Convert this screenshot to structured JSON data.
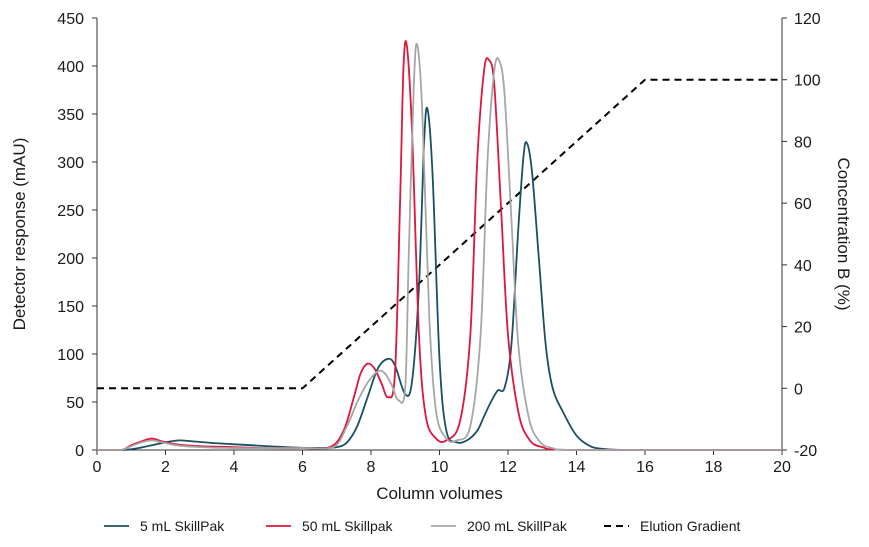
{
  "chart_data": {
    "type": "line",
    "xlabel": "Column volumes",
    "ylabel": "Detector response (mAU)",
    "y2label": "Concentration B (%)",
    "xlim": [
      0,
      20
    ],
    "ylim": [
      0,
      450
    ],
    "y2lim": [
      -20,
      120
    ],
    "xticks": [
      "0",
      "2",
      "4",
      "6",
      "8",
      "10",
      "12",
      "14",
      "16",
      "18",
      "20"
    ],
    "yticks": [
      "0",
      "50",
      "100",
      "150",
      "200",
      "250",
      "300",
      "350",
      "400",
      "450"
    ],
    "y2ticks": [
      "-20",
      "0",
      "20",
      "40",
      "60",
      "80",
      "100",
      "120"
    ],
    "grid": false,
    "legend_position": "bottom",
    "series": [
      {
        "name": "5 mL SkillPak",
        "axis": "left",
        "color": "#1b4f63",
        "x": [
          0,
          0.8,
          1.2,
          1.6,
          2.0,
          2.4,
          2.8,
          3.5,
          4.5,
          5.5,
          6.5,
          7.0,
          7.3,
          7.6,
          7.9,
          8.2,
          8.5,
          8.7,
          9.0,
          9.2,
          9.4,
          9.55,
          9.65,
          9.8,
          10.0,
          10.2,
          10.5,
          10.8,
          11.1,
          11.3,
          11.5,
          11.7,
          11.9,
          12.1,
          12.3,
          12.45,
          12.55,
          12.7,
          12.9,
          13.1,
          13.3,
          13.6,
          14.0,
          14.4,
          14.8,
          15.5,
          17,
          20
        ],
        "y": [
          0,
          0,
          2,
          5,
          8,
          10,
          9,
          7,
          5,
          3,
          2,
          3,
          8,
          25,
          55,
          85,
          95,
          88,
          58,
          72,
          170,
          320,
          355,
          285,
          95,
          20,
          8,
          10,
          20,
          35,
          50,
          62,
          65,
          110,
          230,
          305,
          320,
          290,
          200,
          110,
          65,
          40,
          15,
          4,
          1,
          0,
          0,
          0
        ]
      },
      {
        "name": "50 mL Skillpak",
        "axis": "left",
        "color": "#e0143c",
        "x": [
          0,
          0.7,
          1.0,
          1.3,
          1.6,
          1.9,
          2.3,
          3.0,
          4.0,
          5.0,
          6.0,
          6.8,
          7.2,
          7.5,
          7.7,
          7.9,
          8.1,
          8.3,
          8.5,
          8.7,
          8.85,
          8.95,
          9.05,
          9.2,
          9.4,
          9.6,
          9.9,
          10.2,
          10.6,
          10.9,
          11.1,
          11.3,
          11.45,
          11.6,
          11.8,
          12.0,
          12.3,
          12.6,
          13.0,
          14,
          20
        ],
        "y": [
          0,
          0,
          5,
          9,
          12,
          9,
          6,
          4,
          3,
          2,
          2,
          3,
          20,
          55,
          80,
          90,
          85,
          70,
          55,
          80,
          260,
          400,
          420,
          330,
          120,
          35,
          12,
          10,
          30,
          120,
          300,
          395,
          406,
          380,
          250,
          120,
          40,
          12,
          3,
          0,
          0
        ]
      },
      {
        "name": "200 mL SkillPak",
        "axis": "left",
        "color": "#a6a6a6",
        "x": [
          0,
          0.7,
          1.0,
          1.3,
          1.6,
          1.9,
          2.3,
          3.0,
          4.0,
          5.0,
          6.0,
          6.9,
          7.3,
          7.6,
          7.9,
          8.2,
          8.4,
          8.6,
          8.8,
          9.0,
          9.1,
          9.25,
          9.35,
          9.5,
          9.7,
          9.9,
          10.2,
          10.5,
          10.9,
          11.2,
          11.4,
          11.6,
          11.75,
          11.9,
          12.1,
          12.3,
          12.6,
          12.9,
          13.3,
          14.2,
          20
        ],
        "y": [
          0,
          0,
          4,
          8,
          10,
          8,
          5,
          3,
          2,
          2,
          2,
          3,
          25,
          50,
          70,
          82,
          80,
          68,
          52,
          65,
          200,
          380,
          422,
          350,
          140,
          40,
          12,
          10,
          25,
          120,
          300,
          395,
          405,
          370,
          240,
          110,
          35,
          10,
          2,
          0,
          0
        ]
      },
      {
        "name": "Elution Gradient",
        "axis": "right",
        "color": "#000000",
        "dashed": true,
        "x": [
          0,
          6,
          16,
          20
        ],
        "y": [
          0,
          0,
          100,
          100
        ]
      }
    ]
  }
}
